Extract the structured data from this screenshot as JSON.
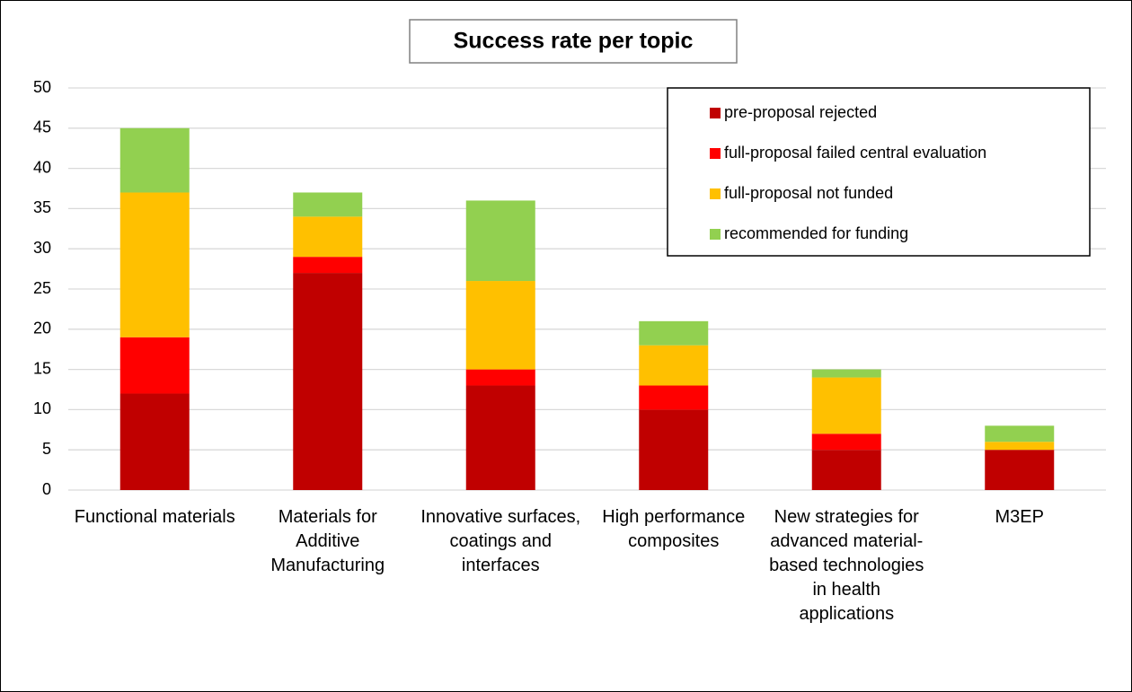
{
  "chart_data": {
    "type": "stacked_bar",
    "title": "Success rate per topic",
    "categories": [
      "Functional materials",
      "Materials for Additive Manufacturing",
      "Innovative surfaces, coatings and interfaces",
      "High performance composites",
      "New strategies for advanced material-based technologies in health applications",
      "M3EP"
    ],
    "series": [
      {
        "name": "pre-proposal rejected",
        "color": "#c00000",
        "values": [
          12,
          27,
          13,
          10,
          5,
          5
        ]
      },
      {
        "name": "full-proposal failed central evaluation",
        "color": "#ff0000",
        "values": [
          7,
          2,
          2,
          3,
          2,
          0
        ]
      },
      {
        "name": "full-proposal not funded",
        "color": "#ffc000",
        "values": [
          18,
          5,
          11,
          5,
          7,
          1
        ]
      },
      {
        "name": "recommended for funding",
        "color": "#92d050",
        "values": [
          8,
          3,
          10,
          3,
          1,
          2
        ]
      }
    ],
    "ylim": [
      0,
      50
    ],
    "yticks": [
      0,
      5,
      10,
      15,
      20,
      25,
      30,
      35,
      40,
      45,
      50
    ],
    "grid": true,
    "legend": "top-right"
  }
}
